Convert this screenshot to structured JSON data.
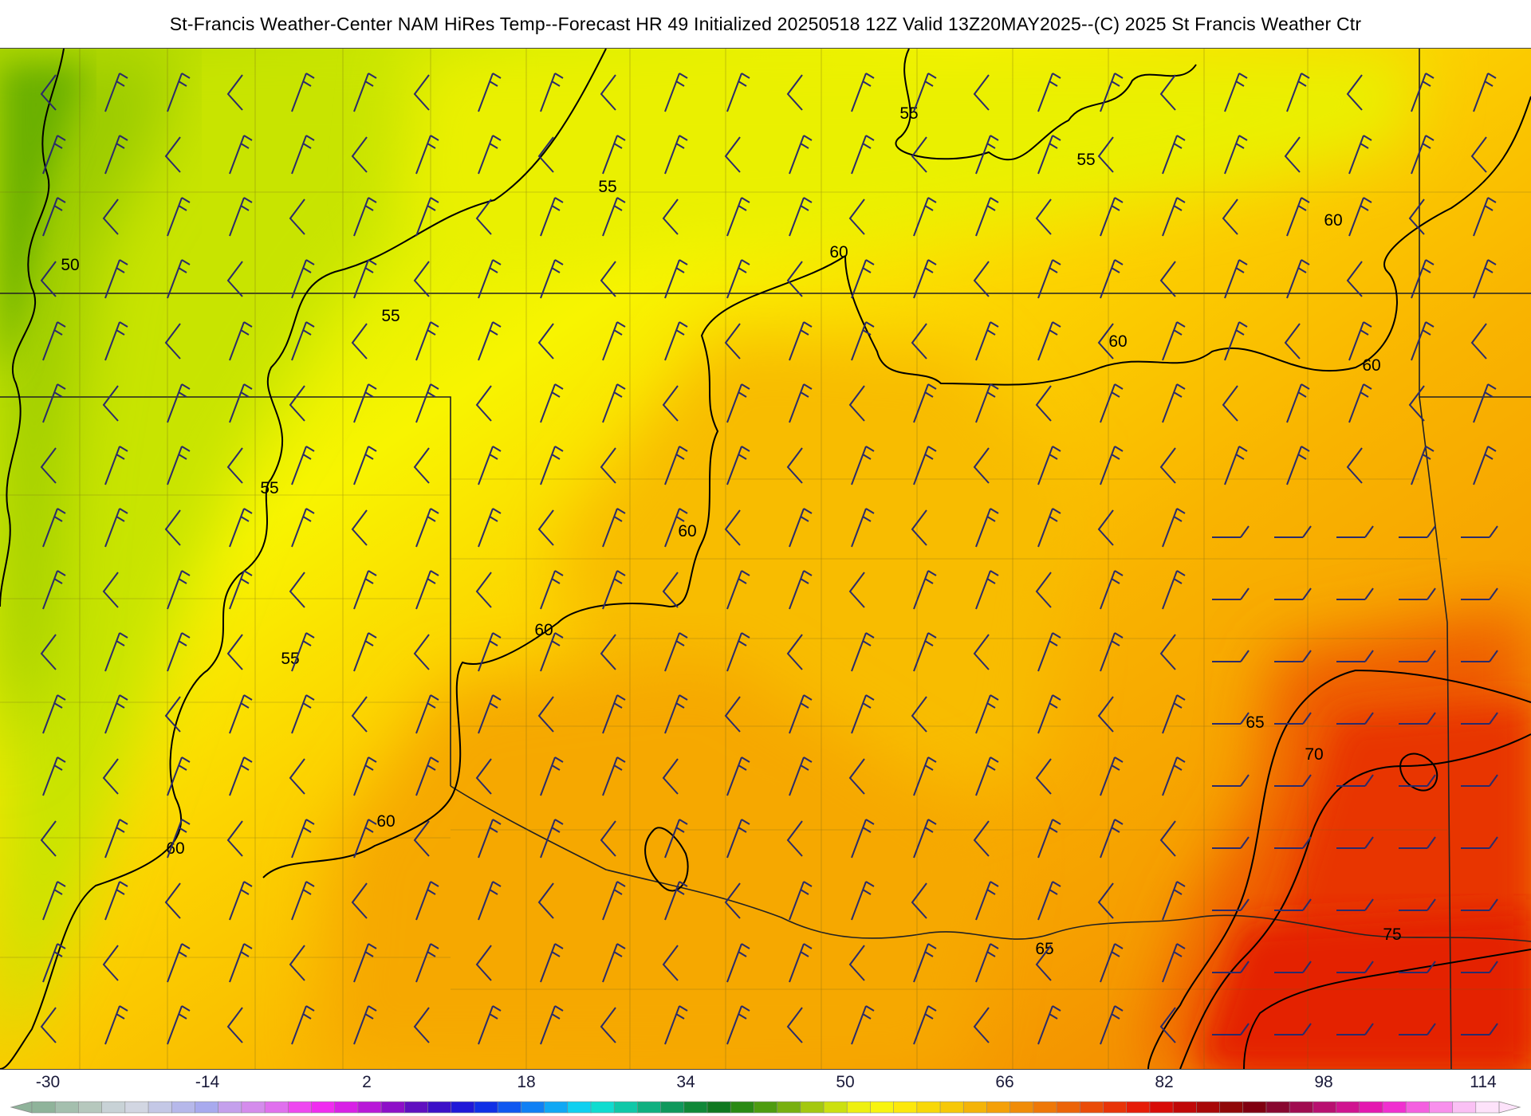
{
  "title": "St-Francis Weather-Center NAM HiRes Temp--Forecast HR 49 Initialized 20250518 12Z Valid 13Z20MAY2025--(C) 2025 St Francis Weather Ctr",
  "map": {
    "type": "temperature-forecast-map",
    "contour_interval_f": 5,
    "contours": [
      {
        "value": 50,
        "labels": [
          "50"
        ]
      },
      {
        "value": 55,
        "labels": [
          "55",
          "55",
          "55",
          "55",
          "55",
          "55"
        ]
      },
      {
        "value": 60,
        "labels": [
          "60",
          "60",
          "60",
          "60",
          "60",
          "60",
          "60",
          "60"
        ]
      },
      {
        "value": 65,
        "labels": [
          "65",
          "65"
        ]
      },
      {
        "value": 70,
        "labels": [
          "70"
        ]
      },
      {
        "value": 75,
        "labels": [
          "75"
        ]
      }
    ],
    "wind_barb_color": "#2b2b6a",
    "contour_color": "#000000"
  },
  "colorbar": {
    "ticks": [
      "-30",
      "-14",
      "2",
      "18",
      "34",
      "50",
      "66",
      "82",
      "98",
      "114"
    ],
    "min": -30,
    "max": 114,
    "colors": [
      "#8fb39a",
      "#a4bfae",
      "#b6c8bd",
      "#c8d2d6",
      "#d2d6e2",
      "#c4c8e6",
      "#b6b8ea",
      "#a8aaee",
      "#c4a0ec",
      "#d48cec",
      "#e070ee",
      "#ee48f0",
      "#f02cf0",
      "#d820e6",
      "#b818d8",
      "#8e10c8",
      "#6010c0",
      "#3c10c8",
      "#2018d8",
      "#1030e6",
      "#1058f0",
      "#1080f4",
      "#10a8f4",
      "#10d0f0",
      "#10dcd0",
      "#10c8a8",
      "#10b080",
      "#10985c",
      "#108838",
      "#107820",
      "#2a8a14",
      "#4e9c10",
      "#78b010",
      "#a4c810",
      "#cce010",
      "#eef010",
      "#f8f410",
      "#fce80c",
      "#f8d808",
      "#f6c808",
      "#f4b408",
      "#f4a008",
      "#f08c08",
      "#ee7808",
      "#ec6408",
      "#ea4c08",
      "#e83408",
      "#e61c08",
      "#d80c08",
      "#c00808",
      "#a80808",
      "#900808",
      "#800010",
      "#880830",
      "#a00c50",
      "#b81070",
      "#d01490",
      "#e418b0",
      "#f030d0",
      "#f460e0",
      "#f890ec",
      "#fac0f4",
      "#fde2fa"
    ]
  }
}
